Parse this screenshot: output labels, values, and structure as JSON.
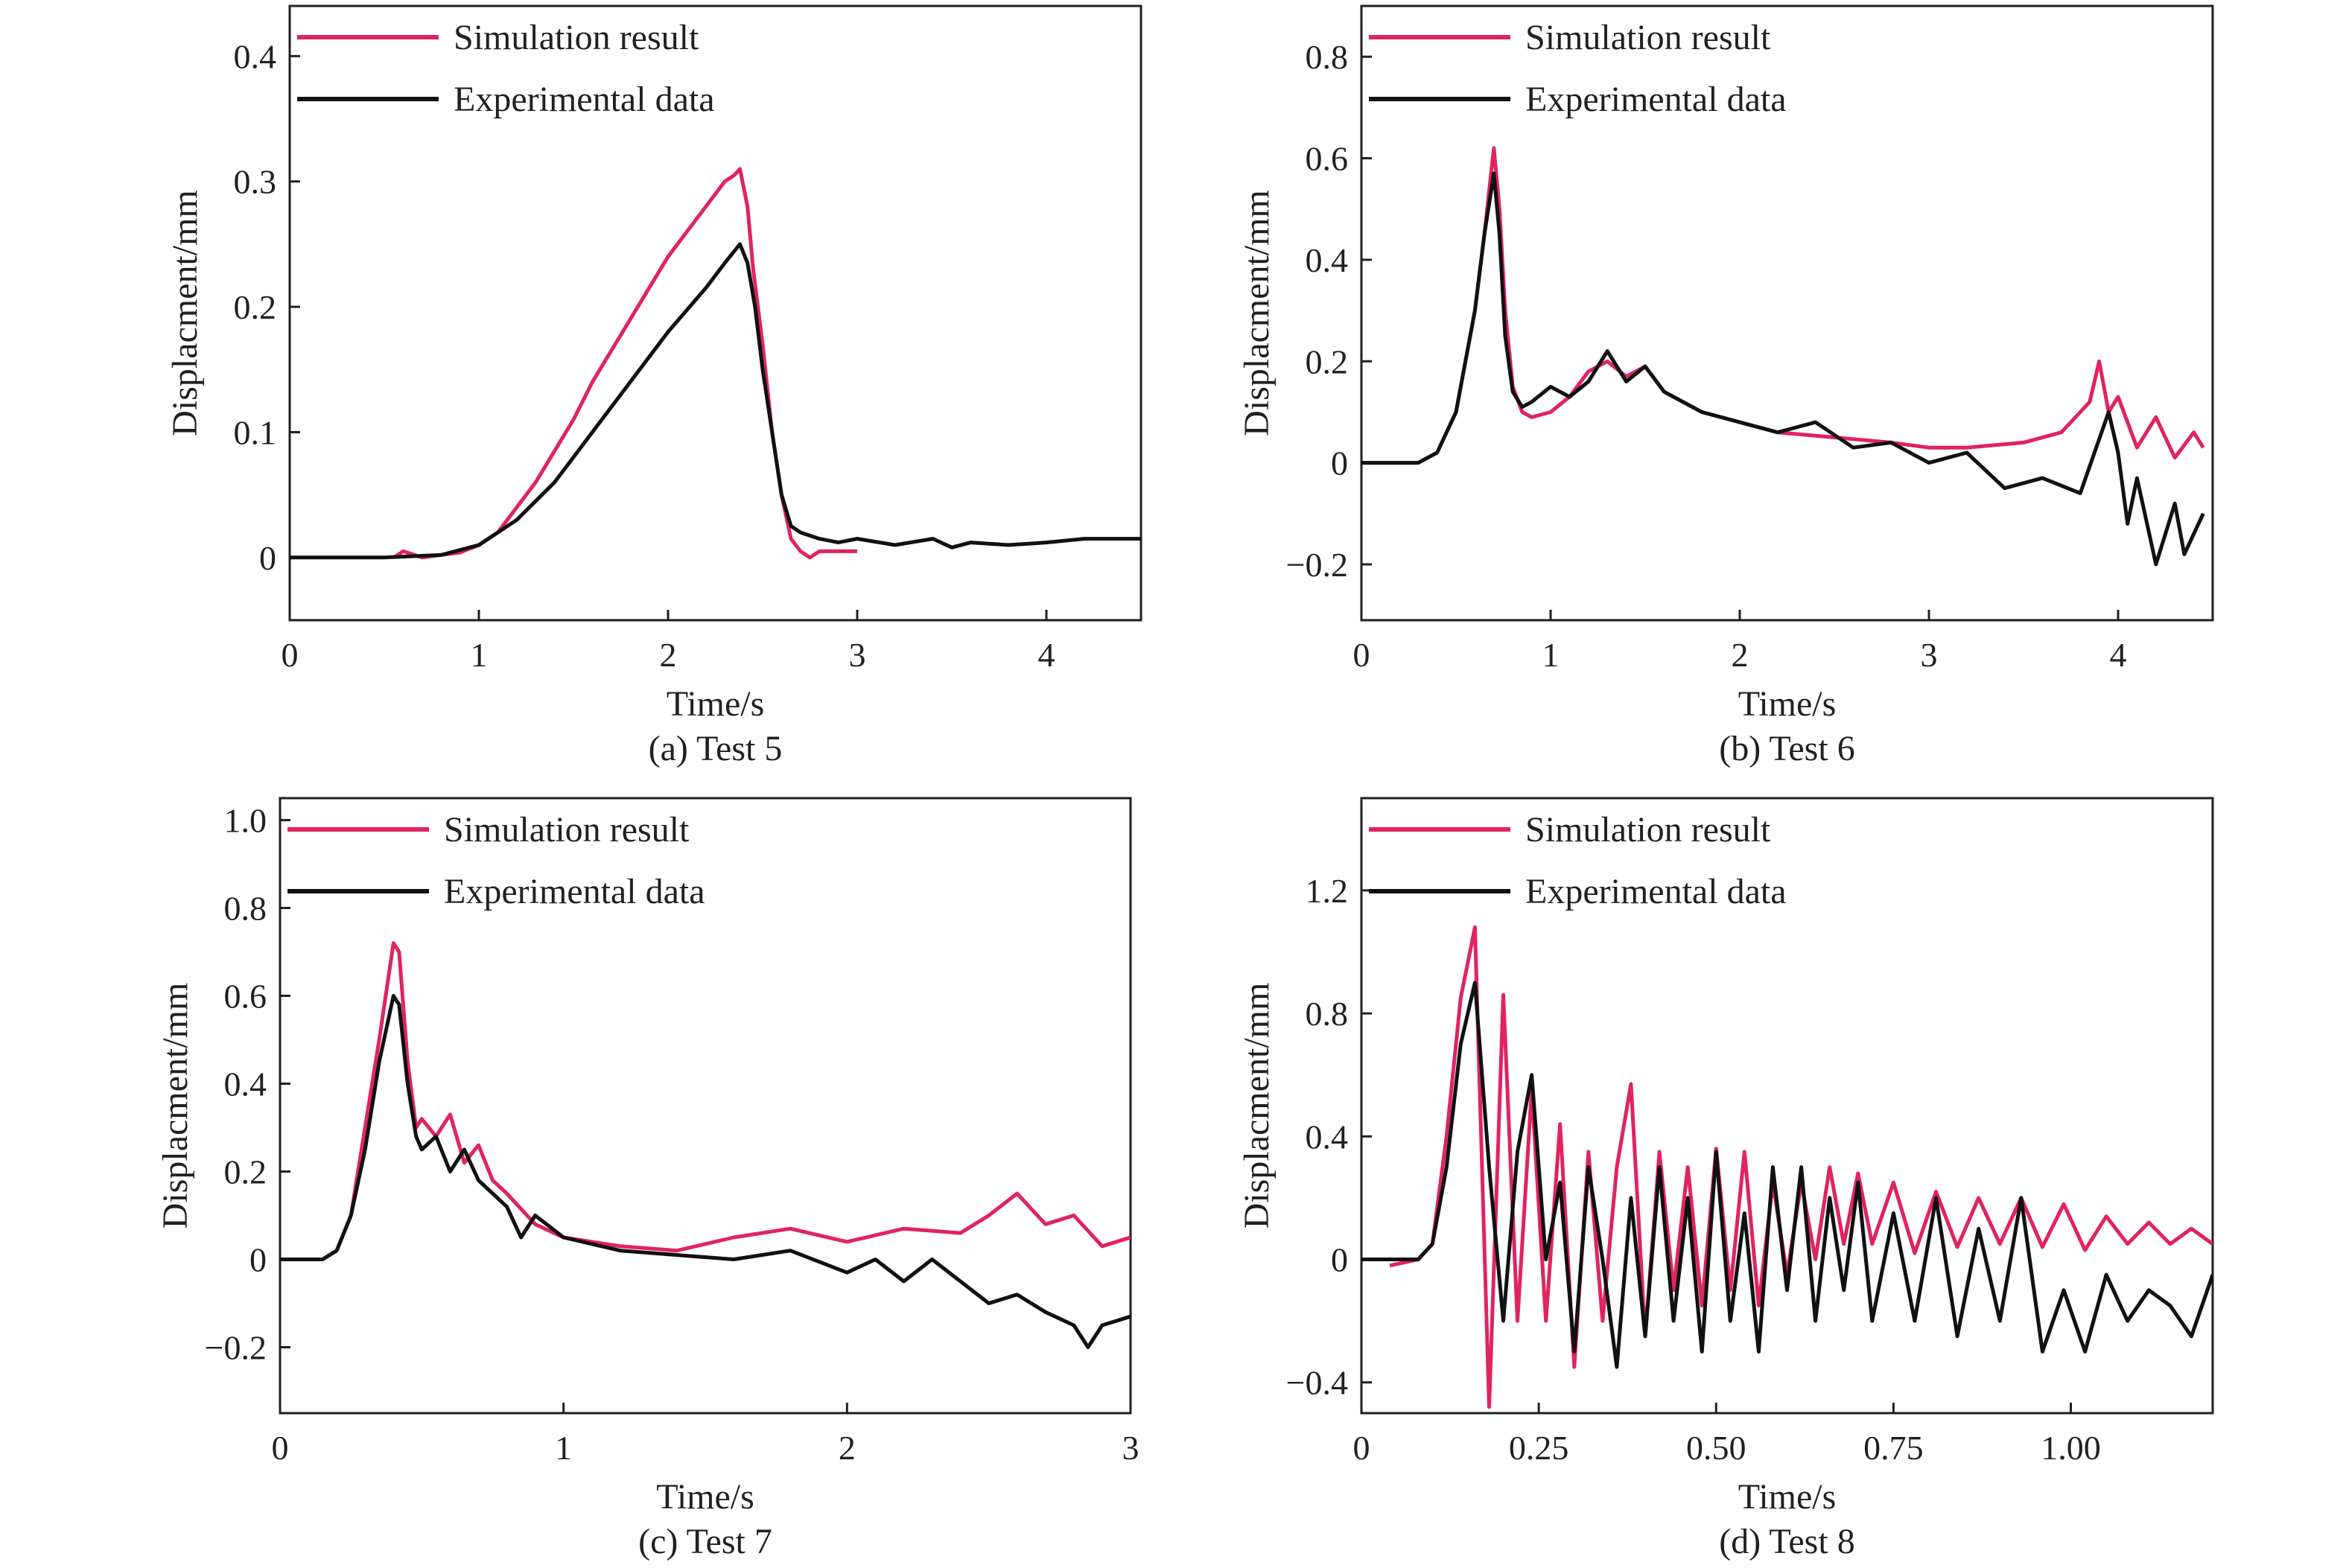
{
  "colors": {
    "simulation": "#e0245e",
    "experimental": "#111111",
    "axis": "#231f20"
  },
  "legend": {
    "simulation_label": "Simulation result",
    "experimental_label": "Experimental data"
  },
  "chart_data": [
    {
      "type": "line",
      "caption": "(a) Test 5",
      "xlabel": "Time/s",
      "ylabel": "Displacment/mm",
      "xlim": [
        0,
        4.5
      ],
      "ylim": [
        -0.05,
        0.44
      ],
      "xticks": [
        0,
        1,
        2,
        3,
        4
      ],
      "xtick_labels": [
        "0",
        "1",
        "2",
        "3",
        "4"
      ],
      "yticks": [
        0,
        0.1,
        0.2,
        0.3,
        0.4
      ],
      "ytick_labels": [
        "0",
        "0.1",
        "0.2",
        "0.3",
        "0.4"
      ],
      "legend_position": "top-left",
      "series": [
        {
          "name": "Simulation result",
          "x": [
            0.55,
            0.6,
            0.7,
            0.8,
            0.9,
            1.0,
            1.1,
            1.2,
            1.3,
            1.4,
            1.5,
            1.6,
            1.7,
            1.8,
            1.9,
            2.0,
            2.1,
            2.2,
            2.3,
            2.35,
            2.38,
            2.42,
            2.45,
            2.5,
            2.55,
            2.6,
            2.65,
            2.7,
            2.75,
            2.8,
            2.9,
            3.0
          ],
          "y": [
            0.0,
            0.005,
            0.0,
            0.002,
            0.004,
            0.01,
            0.02,
            0.04,
            0.06,
            0.085,
            0.11,
            0.14,
            0.165,
            0.19,
            0.215,
            0.24,
            0.26,
            0.28,
            0.3,
            0.305,
            0.31,
            0.28,
            0.23,
            0.17,
            0.1,
            0.05,
            0.015,
            0.005,
            0.0,
            0.005,
            0.005,
            0.005
          ]
        },
        {
          "name": "Experimental data",
          "x": [
            0,
            0.5,
            0.8,
            1.0,
            1.2,
            1.4,
            1.6,
            1.8,
            2.0,
            2.2,
            2.3,
            2.38,
            2.42,
            2.46,
            2.5,
            2.55,
            2.6,
            2.65,
            2.7,
            2.8,
            2.9,
            3.0,
            3.2,
            3.4,
            3.5,
            3.6,
            3.8,
            4.0,
            4.2,
            4.4,
            4.5
          ],
          "y": [
            0,
            0,
            0.002,
            0.01,
            0.03,
            0.06,
            0.1,
            0.14,
            0.18,
            0.215,
            0.235,
            0.25,
            0.235,
            0.2,
            0.15,
            0.1,
            0.05,
            0.025,
            0.02,
            0.015,
            0.012,
            0.015,
            0.01,
            0.015,
            0.008,
            0.012,
            0.01,
            0.012,
            0.015,
            0.015,
            0.015
          ]
        }
      ]
    },
    {
      "type": "line",
      "caption": "(b) Test 6",
      "xlabel": "Time/s",
      "ylabel": "Displacment/mm",
      "xlim": [
        0,
        4.5
      ],
      "ylim": [
        -0.31,
        0.9
      ],
      "xticks": [
        0,
        1,
        2,
        3,
        4
      ],
      "xtick_labels": [
        "0",
        "1",
        "2",
        "3",
        "4"
      ],
      "yticks": [
        -0.2,
        0,
        0.2,
        0.4,
        0.6,
        0.8
      ],
      "ytick_labels": [
        "−0.2",
        "0",
        "0.2",
        "0.4",
        "0.6",
        "0.8"
      ],
      "legend_position": "top-left",
      "series": [
        {
          "name": "Simulation result",
          "x": [
            0,
            0.3,
            0.4,
            0.5,
            0.6,
            0.65,
            0.7,
            0.73,
            0.76,
            0.8,
            0.85,
            0.9,
            1.0,
            1.1,
            1.2,
            1.3,
            1.4,
            1.5,
            1.6,
            1.8,
            2.0,
            2.2,
            2.5,
            2.8,
            3.0,
            3.2,
            3.5,
            3.7,
            3.85,
            3.9,
            3.95,
            4.0,
            4.1,
            4.2,
            4.3,
            4.4,
            4.45
          ],
          "y": [
            0,
            0,
            0.02,
            0.1,
            0.3,
            0.45,
            0.62,
            0.5,
            0.3,
            0.15,
            0.1,
            0.09,
            0.1,
            0.13,
            0.18,
            0.2,
            0.17,
            0.19,
            0.14,
            0.1,
            0.08,
            0.06,
            0.05,
            0.04,
            0.03,
            0.03,
            0.04,
            0.06,
            0.12,
            0.2,
            0.1,
            0.13,
            0.03,
            0.09,
            0.01,
            0.06,
            0.03
          ]
        },
        {
          "name": "Experimental data",
          "x": [
            0,
            0.3,
            0.4,
            0.5,
            0.6,
            0.65,
            0.7,
            0.73,
            0.76,
            0.8,
            0.85,
            0.9,
            1.0,
            1.1,
            1.2,
            1.3,
            1.4,
            1.5,
            1.6,
            1.8,
            2.0,
            2.2,
            2.4,
            2.6,
            2.8,
            3.0,
            3.2,
            3.4,
            3.6,
            3.8,
            3.95,
            4.0,
            4.05,
            4.1,
            4.2,
            4.3,
            4.35,
            4.45
          ],
          "y": [
            0,
            0,
            0.02,
            0.1,
            0.3,
            0.45,
            0.57,
            0.45,
            0.25,
            0.14,
            0.11,
            0.12,
            0.15,
            0.13,
            0.16,
            0.22,
            0.16,
            0.19,
            0.14,
            0.1,
            0.08,
            0.06,
            0.08,
            0.03,
            0.04,
            0.0,
            0.02,
            -0.05,
            -0.03,
            -0.06,
            0.1,
            0.02,
            -0.12,
            -0.03,
            -0.2,
            -0.08,
            -0.18,
            -0.1
          ]
        }
      ]
    },
    {
      "type": "line",
      "caption": "(c) Test 7",
      "xlabel": "Time/s",
      "ylabel": "Displacment/mm",
      "xlim": [
        0,
        3
      ],
      "ylim": [
        -0.35,
        1.05
      ],
      "xticks": [
        0,
        1,
        2,
        3
      ],
      "xtick_labels": [
        "0",
        "1",
        "2",
        "3"
      ],
      "yticks": [
        -0.2,
        0,
        0.2,
        0.4,
        0.6,
        0.8,
        1.0
      ],
      "ytick_labels": [
        "−0.2",
        "0",
        "0.2",
        "0.4",
        "0.6",
        "0.8",
        "1.0"
      ],
      "legend_position": "top-left",
      "series": [
        {
          "name": "Simulation result",
          "x": [
            0,
            0.15,
            0.2,
            0.25,
            0.3,
            0.35,
            0.4,
            0.42,
            0.45,
            0.48,
            0.5,
            0.55,
            0.6,
            0.65,
            0.7,
            0.75,
            0.8,
            0.9,
            1.0,
            1.2,
            1.4,
            1.6,
            1.8,
            2.0,
            2.2,
            2.4,
            2.5,
            2.6,
            2.7,
            2.8,
            2.9,
            3.0
          ],
          "y": [
            0,
            0,
            0.02,
            0.1,
            0.3,
            0.5,
            0.72,
            0.7,
            0.45,
            0.3,
            0.32,
            0.28,
            0.33,
            0.22,
            0.26,
            0.18,
            0.15,
            0.08,
            0.05,
            0.03,
            0.02,
            0.05,
            0.07,
            0.04,
            0.07,
            0.06,
            0.1,
            0.15,
            0.08,
            0.1,
            0.03,
            0.05
          ]
        },
        {
          "name": "Experimental data",
          "x": [
            0,
            0.15,
            0.2,
            0.25,
            0.3,
            0.35,
            0.4,
            0.42,
            0.45,
            0.48,
            0.5,
            0.55,
            0.6,
            0.65,
            0.7,
            0.75,
            0.8,
            0.85,
            0.9,
            1.0,
            1.2,
            1.4,
            1.6,
            1.8,
            2.0,
            2.1,
            2.2,
            2.3,
            2.4,
            2.5,
            2.6,
            2.7,
            2.8,
            2.85,
            2.9,
            3.0
          ],
          "y": [
            0,
            0,
            0.02,
            0.1,
            0.25,
            0.45,
            0.6,
            0.58,
            0.4,
            0.28,
            0.25,
            0.28,
            0.2,
            0.25,
            0.18,
            0.15,
            0.12,
            0.05,
            0.1,
            0.05,
            0.02,
            0.01,
            0.0,
            0.02,
            -0.03,
            0.0,
            -0.05,
            0.0,
            -0.05,
            -0.1,
            -0.08,
            -0.12,
            -0.15,
            -0.2,
            -0.15,
            -0.13
          ]
        }
      ]
    },
    {
      "type": "line",
      "caption": "(d) Test 8",
      "xlabel": "Time/s",
      "ylabel": "Displacment/mm",
      "xlim": [
        0,
        1.2
      ],
      "ylim": [
        -0.5,
        1.5
      ],
      "xticks": [
        0,
        0.25,
        0.5,
        0.75,
        1.0
      ],
      "xtick_labels": [
        "0",
        "0.25",
        "0.50",
        "0.75",
        "1.00"
      ],
      "yticks": [
        -0.4,
        0,
        0.4,
        0.8,
        1.2
      ],
      "ytick_labels": [
        "−0.4",
        "0",
        "0.4",
        "0.8",
        "1.2"
      ],
      "legend_position": "top-left",
      "series": [
        {
          "name": "Simulation result",
          "x": [
            0.04,
            0.08,
            0.1,
            0.12,
            0.14,
            0.16,
            0.18,
            0.2,
            0.22,
            0.24,
            0.26,
            0.28,
            0.3,
            0.32,
            0.34,
            0.36,
            0.38,
            0.4,
            0.42,
            0.44,
            0.46,
            0.48,
            0.5,
            0.52,
            0.54,
            0.56,
            0.58,
            0.6,
            0.62,
            0.64,
            0.66,
            0.68,
            0.7,
            0.72,
            0.75,
            0.78,
            0.81,
            0.84,
            0.87,
            0.9,
            0.93,
            0.96,
            0.99,
            1.02,
            1.05,
            1.08,
            1.11,
            1.14,
            1.17,
            1.2
          ],
          "y": [
            -0.02,
            0.0,
            0.05,
            0.4,
            0.85,
            1.08,
            -0.48,
            0.86,
            -0.2,
            0.55,
            -0.2,
            0.44,
            -0.35,
            0.35,
            -0.2,
            0.3,
            0.57,
            -0.25,
            0.35,
            -0.1,
            0.3,
            -0.15,
            0.36,
            -0.1,
            0.35,
            -0.15,
            0.25,
            -0.05,
            0.25,
            0.0,
            0.3,
            0.05,
            0.28,
            0.05,
            0.25,
            0.02,
            0.22,
            0.04,
            0.2,
            0.05,
            0.2,
            0.04,
            0.18,
            0.03,
            0.14,
            0.05,
            0.12,
            0.05,
            0.1,
            0.05
          ]
        },
        {
          "name": "Experimental data",
          "x": [
            0.0,
            0.08,
            0.1,
            0.12,
            0.14,
            0.16,
            0.18,
            0.2,
            0.22,
            0.24,
            0.26,
            0.28,
            0.3,
            0.32,
            0.34,
            0.36,
            0.38,
            0.4,
            0.42,
            0.44,
            0.46,
            0.48,
            0.5,
            0.52,
            0.54,
            0.56,
            0.58,
            0.6,
            0.62,
            0.64,
            0.66,
            0.68,
            0.7,
            0.72,
            0.75,
            0.78,
            0.81,
            0.84,
            0.87,
            0.9,
            0.93,
            0.96,
            0.99,
            1.02,
            1.05,
            1.08,
            1.11,
            1.14,
            1.17,
            1.2
          ],
          "y": [
            0.0,
            0.0,
            0.05,
            0.3,
            0.7,
            0.9,
            0.3,
            -0.2,
            0.35,
            0.6,
            0.0,
            0.25,
            -0.3,
            0.3,
            0.0,
            -0.35,
            0.2,
            -0.25,
            0.3,
            -0.2,
            0.2,
            -0.3,
            0.35,
            -0.2,
            0.15,
            -0.3,
            0.3,
            -0.1,
            0.3,
            -0.2,
            0.2,
            -0.1,
            0.25,
            -0.2,
            0.15,
            -0.2,
            0.2,
            -0.25,
            0.1,
            -0.2,
            0.2,
            -0.3,
            -0.1,
            -0.3,
            -0.05,
            -0.2,
            -0.1,
            -0.15,
            -0.25,
            -0.05
          ]
        }
      ]
    }
  ]
}
